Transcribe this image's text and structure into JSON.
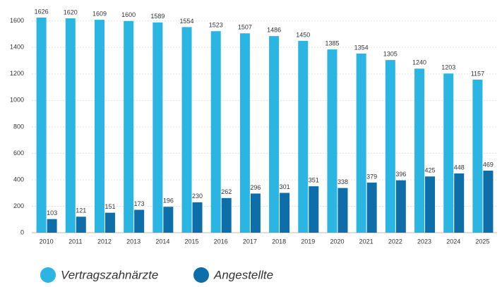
{
  "chart_data": {
    "type": "bar",
    "categories": [
      "2010",
      "2011",
      "2012",
      "2013",
      "2014",
      "2015",
      "2016",
      "2017",
      "2018",
      "2019",
      "2020",
      "2021",
      "2022",
      "2023",
      "2024",
      "2025"
    ],
    "series": [
      {
        "name": "Vertragszahnärzte",
        "color": "#2bb5e2",
        "values": [
          1626,
          1620,
          1609,
          1600,
          1589,
          1554,
          1523,
          1507,
          1486,
          1450,
          1385,
          1354,
          1305,
          1240,
          1203,
          1157
        ]
      },
      {
        "name": "Angestellte",
        "color": "#0d6ea9",
        "values": [
          103,
          121,
          151,
          173,
          196,
          230,
          262,
          296,
          301,
          351,
          338,
          379,
          396,
          425,
          448,
          469
        ]
      }
    ],
    "ylim": [
      0,
      1700
    ],
    "yticks": [
      0,
      200,
      400,
      600,
      800,
      1000,
      1200,
      1400,
      1600
    ],
    "grid": true,
    "legend": "bottom"
  }
}
